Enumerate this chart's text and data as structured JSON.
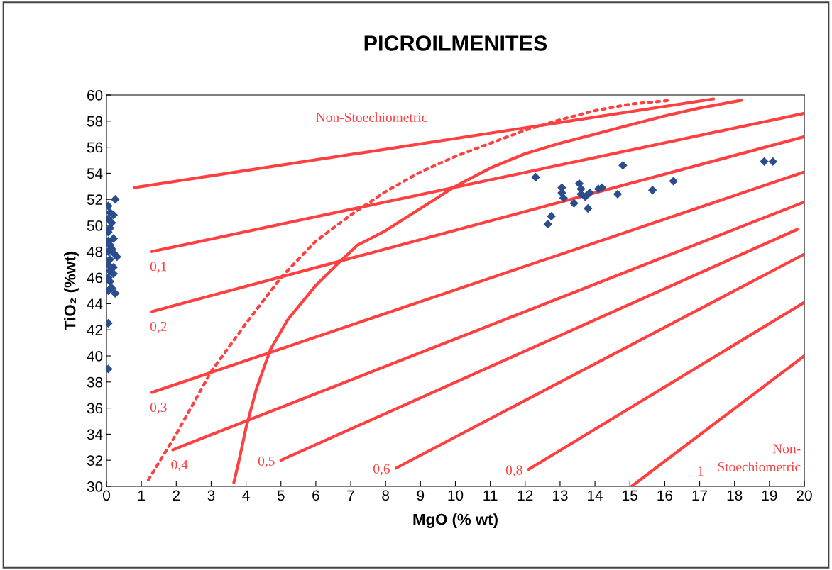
{
  "chart_data": {
    "type": "scatter",
    "title": "PICROILMENITES",
    "xlabel": "MgO (% wt)",
    "ylabel": "TiO₂ (%wt)",
    "xlim": [
      0,
      20
    ],
    "xticks": [
      0,
      1,
      2,
      3,
      4,
      5,
      6,
      7,
      8,
      9,
      10,
      11,
      12,
      13,
      14,
      15,
      16,
      17,
      18,
      19,
      20
    ],
    "ylim": [
      30,
      60
    ],
    "yticks": [
      30,
      32,
      34,
      36,
      38,
      40,
      42,
      44,
      46,
      48,
      50,
      52,
      54,
      56,
      58,
      60
    ],
    "grid": false,
    "series": [
      {
        "color": "#2b4d8c",
        "marker": "diamond",
        "x": [
          0.25,
          0.05,
          0.1,
          0.2,
          0.05,
          0.15,
          0.1,
          0.05,
          0.2,
          0.05,
          0.1,
          0.15,
          0.05,
          0.3,
          0.2,
          0.1,
          0.05,
          0.2,
          0.1,
          0.2,
          0.05,
          0.1,
          0.15,
          0.25,
          0.05,
          0.05,
          0.05,
          12.3,
          12.65,
          12.75,
          13.05,
          13.05,
          13.1,
          13.4,
          13.55,
          13.6,
          13.72,
          13.8,
          13.85,
          13.6,
          14.1,
          14.2,
          14.65,
          14.8,
          15.65,
          16.25,
          18.85,
          19.1
        ],
        "values": [
          52.0,
          51.5,
          51.0,
          50.8,
          50.5,
          50.2,
          49.8,
          49.5,
          49.0,
          48.8,
          48.5,
          48.2,
          48.0,
          47.6,
          47.9,
          47.4,
          47.0,
          46.8,
          46.5,
          46.3,
          46.0,
          45.7,
          45.2,
          44.8,
          45.0,
          42.5,
          39.0,
          53.7,
          50.1,
          50.7,
          52.9,
          52.5,
          52.1,
          51.7,
          53.2,
          52.8,
          52.2,
          51.3,
          52.5,
          52.4,
          52.8,
          52.9,
          52.4,
          54.6,
          52.7,
          53.4,
          54.9,
          54.9
        ]
      },
      {
        "type": "line",
        "color": "#ff4040",
        "marker": "none",
        "line_style": "solid",
        "x": [
          0.8,
          17.4
        ],
        "values": [
          52.9,
          59.7
        ]
      },
      {
        "type": "line",
        "name": "0,1",
        "color": "#ff4040",
        "marker": "none",
        "line_style": "solid",
        "x": [
          1.3,
          20
        ],
        "values": [
          48.0,
          58.6
        ]
      },
      {
        "type": "line",
        "name": "0,2",
        "color": "#ff4040",
        "marker": "none",
        "line_style": "solid",
        "x": [
          1.3,
          20
        ],
        "values": [
          43.4,
          56.8
        ]
      },
      {
        "type": "line",
        "name": "0,3",
        "color": "#ff4040",
        "marker": "none",
        "line_style": "solid",
        "x": [
          1.3,
          20
        ],
        "values": [
          37.2,
          54.1
        ]
      },
      {
        "type": "line",
        "name": "0,4",
        "color": "#ff4040",
        "marker": "none",
        "line_style": "solid",
        "x": [
          1.9,
          20
        ],
        "values": [
          32.8,
          51.8
        ]
      },
      {
        "type": "line",
        "name": "0,5",
        "color": "#ff4040",
        "marker": "none",
        "line_style": "solid",
        "x": [
          5.0,
          19.8
        ],
        "values": [
          32.0,
          49.7
        ]
      },
      {
        "type": "line",
        "name": "0,6",
        "color": "#ff4040",
        "marker": "none",
        "line_style": "solid",
        "x": [
          8.3,
          20
        ],
        "values": [
          31.4,
          47.8
        ]
      },
      {
        "type": "line",
        "name": "0,8",
        "color": "#ff4040",
        "marker": "none",
        "line_style": "solid",
        "x": [
          12.1,
          20
        ],
        "values": [
          31.3,
          44.1
        ]
      },
      {
        "type": "line",
        "name": "1",
        "color": "#ff4040",
        "marker": "none",
        "line_style": "solid",
        "x": [
          15.05,
          20
        ],
        "values": [
          30.0,
          40.0
        ]
      },
      {
        "type": "line",
        "color": "#ff4040",
        "marker": "none",
        "line_style": "dotted",
        "x": [
          1.2,
          2,
          3,
          4,
          5,
          6,
          7,
          8,
          9,
          10,
          11,
          12,
          13,
          14,
          15,
          16.2
        ],
        "values": [
          30.5,
          34,
          38.8,
          42.5,
          46,
          48.8,
          50.8,
          52.6,
          54.1,
          55.3,
          56.3,
          57.3,
          58.1,
          58.8,
          59.3,
          59.6
        ]
      },
      {
        "type": "line",
        "color": "#ff4040",
        "marker": "none",
        "line_style": "solid",
        "x": [
          3.65,
          3.8,
          4,
          4.3,
          4.7,
          5.2,
          6,
          6.6,
          7.2,
          8,
          9,
          10,
          11,
          12,
          13,
          14,
          15,
          16,
          17,
          18.2
        ],
        "values": [
          30.3,
          32,
          34.5,
          37.5,
          40.5,
          42.8,
          45.4,
          47,
          48.5,
          49.6,
          51.3,
          53,
          54.4,
          55.5,
          56.3,
          57,
          57.7,
          58.4,
          59,
          59.6
        ]
      }
    ],
    "annotations": [
      "Non-Stoechiometric",
      "Non-\nStoechiometric"
    ]
  }
}
